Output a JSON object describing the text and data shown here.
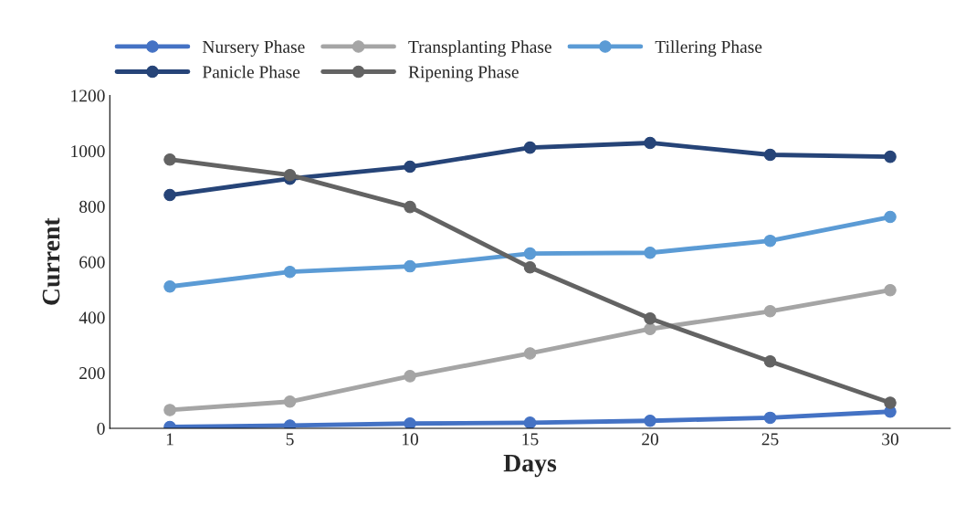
{
  "chart_data": {
    "type": "line",
    "xlabel": "Days",
    "ylabel": "Current",
    "categories": [
      "1",
      "5",
      "10",
      "15",
      "20",
      "25",
      "30"
    ],
    "series": [
      {
        "name": "Nursery Phase",
        "color": "#4472c4",
        "values": [
          5,
          10,
          17,
          20,
          27,
          38,
          60
        ]
      },
      {
        "name": "Transplanting Phase",
        "color": "#a5a5a5",
        "values": [
          66,
          96,
          188,
          270,
          358,
          422,
          498
        ]
      },
      {
        "name": "Tillering Phase",
        "color": "#5b9bd5",
        "values": [
          511,
          564,
          584,
          630,
          633,
          676,
          762
        ]
      },
      {
        "name": "Panicle Phase",
        "color": "#264478",
        "values": [
          841,
          900,
          943,
          1012,
          1029,
          986,
          979
        ]
      },
      {
        "name": "Ripening Phase",
        "color": "#636363",
        "values": [
          969,
          913,
          798,
          580,
          396,
          241,
          92
        ]
      }
    ],
    "ylim": [
      0,
      1200
    ],
    "yticks": [
      0,
      200,
      400,
      600,
      800,
      1000,
      1200
    ],
    "grid": false,
    "legend": "top",
    "marker": "circle",
    "line_style": "solid"
  }
}
